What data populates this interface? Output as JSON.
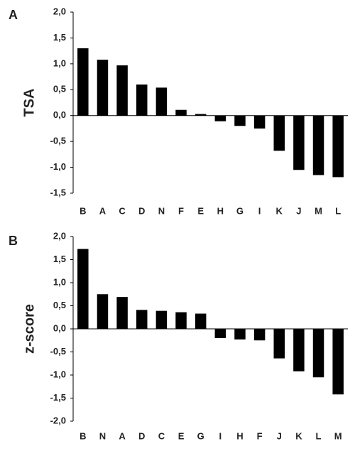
{
  "chart_data": [
    {
      "type": "bar",
      "panel_label": "A",
      "y_label": "TSA",
      "categories": [
        "B",
        "A",
        "C",
        "D",
        "N",
        "F",
        "E",
        "H",
        "G",
        "I",
        "K",
        "J",
        "M",
        "L"
      ],
      "values": [
        1.3,
        1.08,
        0.97,
        0.6,
        0.54,
        0.11,
        0.03,
        -0.11,
        -0.2,
        -0.25,
        -0.68,
        -1.05,
        -1.15,
        -1.19
      ],
      "color": "#000000",
      "ylim": [
        -1.5,
        2.0
      ],
      "yticks": [
        {
          "value": -1.5,
          "label": "-1,5"
        },
        {
          "value": -1,
          "label": "-1,0"
        },
        {
          "value": -0.5,
          "label": "-0,5"
        },
        {
          "value": 0,
          "label": "0,0"
        },
        {
          "value": 0.5,
          "label": "0,5"
        },
        {
          "value": 1,
          "label": "1,0"
        },
        {
          "value": 1.5,
          "label": "1,5"
        },
        {
          "value": 2,
          "label": "2,0"
        }
      ],
      "grid": false
    },
    {
      "type": "bar",
      "panel_label": "B",
      "y_label": "z-score",
      "categories": [
        "B",
        "N",
        "A",
        "D",
        "C",
        "E",
        "G",
        "I",
        "H",
        "F",
        "J",
        "K",
        "L",
        "M"
      ],
      "values": [
        1.73,
        0.75,
        0.69,
        0.41,
        0.39,
        0.36,
        0.33,
        -0.2,
        -0.23,
        -0.25,
        -0.64,
        -0.92,
        -1.05,
        -1.42
      ],
      "color": "#000000",
      "ylim": [
        -2.0,
        2.0
      ],
      "yticks": [
        {
          "value": -2,
          "label": "-2,0"
        },
        {
          "value": -1.5,
          "label": "-1,5"
        },
        {
          "value": -1,
          "label": "-1,0"
        },
        {
          "value": -0.5,
          "label": "-0,5"
        },
        {
          "value": 0,
          "label": "0,0"
        },
        {
          "value": 0.5,
          "label": "0,5"
        },
        {
          "value": 1,
          "label": "1,0"
        },
        {
          "value": 1.5,
          "label": "1,5"
        },
        {
          "value": 2,
          "label": "2,0"
        }
      ],
      "grid": false
    }
  ]
}
